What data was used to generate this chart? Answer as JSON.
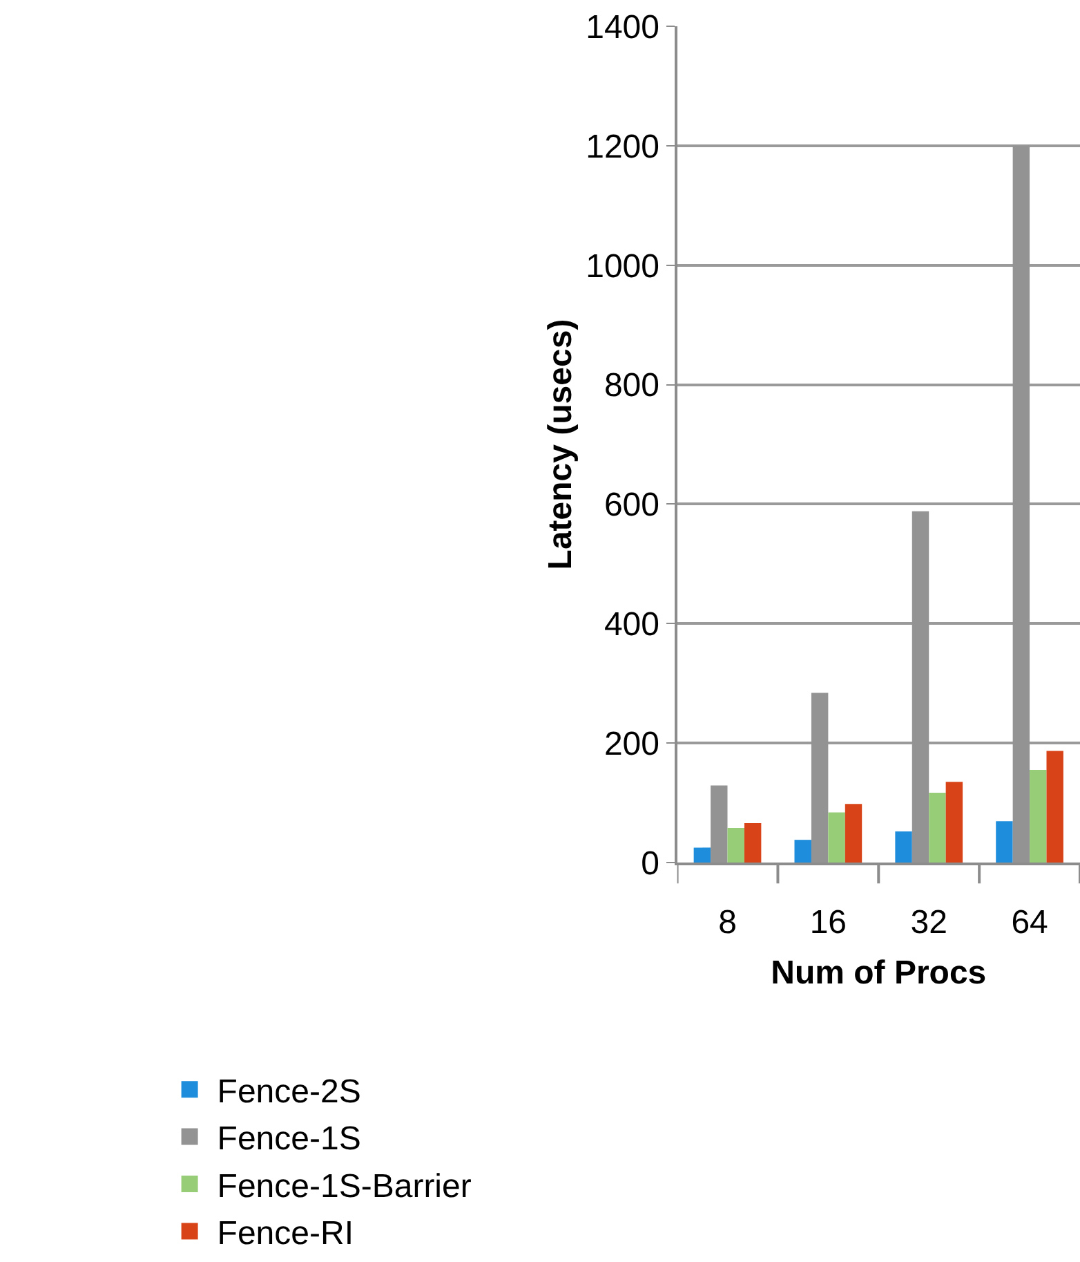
{
  "chart_data": {
    "type": "bar",
    "xlabel": "Num of Procs",
    "ylabel": "Latency (usecs)",
    "categories": [
      "8",
      "16",
      "32",
      "64"
    ],
    "series": [
      {
        "name": "Fence-2S",
        "color": "#1e8ddb",
        "values": [
          25,
          38,
          52,
          69
        ]
      },
      {
        "name": "Fence-1S",
        "color": "#939393",
        "values": [
          129,
          284,
          588,
          1200
        ]
      },
      {
        "name": "Fence-1S-Barrier",
        "color": "#98cd78",
        "values": [
          58,
          84,
          117,
          155
        ]
      },
      {
        "name": "Fence-RI",
        "color": "#d84418",
        "values": [
          66,
          98,
          135,
          187
        ]
      }
    ],
    "ylim": [
      0,
      1400
    ],
    "yticks": [
      0,
      200,
      400,
      600,
      800,
      1000,
      1200,
      1400
    ],
    "grid": "y",
    "legend": "bottom"
  }
}
